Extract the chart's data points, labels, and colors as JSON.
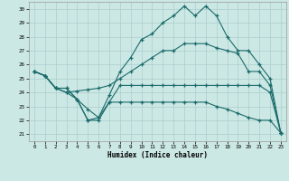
{
  "xlabel": "Humidex (Indice chaleur)",
  "bg_color": "#cce8e4",
  "grid_color": "#aacece",
  "line_color": "#1a6b6b",
  "xlim": [
    -0.5,
    23.5
  ],
  "ylim": [
    20.5,
    30.5
  ],
  "xtick_vals": [
    0,
    1,
    2,
    3,
    4,
    5,
    6,
    7,
    8,
    9,
    10,
    11,
    12,
    13,
    14,
    15,
    16,
    17,
    18,
    19,
    20,
    21,
    22,
    23
  ],
  "ytick_vals": [
    21,
    22,
    23,
    24,
    25,
    26,
    27,
    28,
    29,
    30
  ],
  "lineA_x": [
    0,
    1,
    2,
    3,
    4,
    5,
    6,
    7,
    8,
    9,
    10,
    11,
    12,
    13,
    14,
    15,
    16,
    17,
    18,
    19,
    20,
    21,
    22,
    23
  ],
  "lineA_y": [
    25.5,
    25.2,
    24.3,
    24.3,
    23.5,
    22.0,
    22.0,
    23.3,
    23.3,
    23.3,
    23.3,
    23.3,
    23.3,
    23.3,
    23.3,
    23.3,
    23.3,
    23.0,
    22.8,
    22.5,
    22.2,
    22.0,
    22.0,
    21.1
  ],
  "lineB_x": [
    0,
    1,
    2,
    3,
    4,
    5,
    6,
    7,
    8,
    9,
    10,
    11,
    12,
    13,
    14,
    15,
    16,
    17,
    18,
    19,
    20,
    21,
    22,
    23
  ],
  "lineB_y": [
    25.5,
    25.2,
    24.3,
    24.3,
    23.5,
    22.0,
    22.2,
    23.3,
    24.5,
    24.5,
    24.5,
    24.5,
    24.5,
    24.5,
    24.5,
    24.5,
    24.5,
    24.5,
    24.5,
    24.5,
    24.5,
    24.5,
    24.0,
    21.1
  ],
  "lineC_x": [
    0,
    1,
    2,
    3,
    4,
    5,
    6,
    7,
    8,
    9,
    10,
    11,
    12,
    13,
    14,
    15,
    16,
    17,
    18,
    19,
    20,
    21,
    22,
    23
  ],
  "lineC_y": [
    25.5,
    25.2,
    24.3,
    24.0,
    24.1,
    24.2,
    24.3,
    24.5,
    25.0,
    25.5,
    26.0,
    26.5,
    27.0,
    27.0,
    27.5,
    27.5,
    27.5,
    27.2,
    27.0,
    26.8,
    25.5,
    25.5,
    24.5,
    21.1
  ],
  "lineD_x": [
    0,
    1,
    2,
    3,
    4,
    5,
    6,
    7,
    8,
    9,
    10,
    11,
    12,
    13,
    14,
    15,
    16,
    17,
    18,
    19,
    20,
    21,
    22,
    23
  ],
  "lineD_y": [
    25.5,
    25.2,
    24.3,
    24.0,
    23.5,
    22.8,
    22.2,
    23.8,
    25.5,
    26.5,
    27.8,
    28.2,
    29.0,
    29.5,
    30.2,
    29.5,
    30.2,
    29.5,
    28.0,
    27.0,
    27.0,
    26.0,
    25.0,
    21.1
  ]
}
